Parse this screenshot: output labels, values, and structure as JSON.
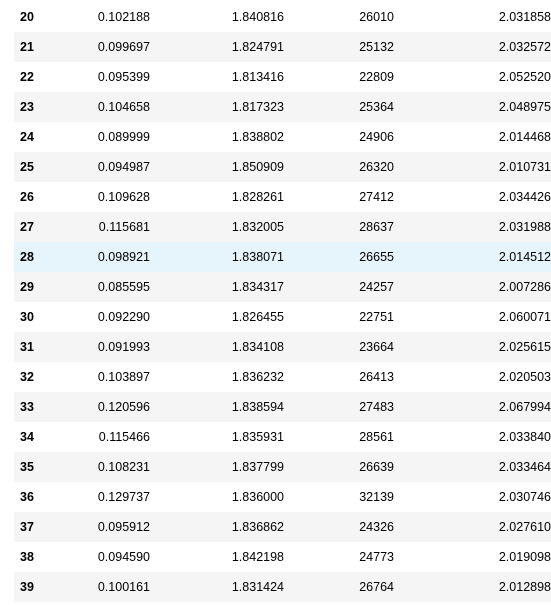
{
  "table": {
    "rows": [
      {
        "index": "20",
        "c1": "0.102188",
        "c2": "1.840816",
        "c3": "26010",
        "c4": "2.031858"
      },
      {
        "index": "21",
        "c1": "0.099697",
        "c2": "1.824791",
        "c3": "25132",
        "c4": "2.032572"
      },
      {
        "index": "22",
        "c1": "0.095399",
        "c2": "1.813416",
        "c3": "22809",
        "c4": "2.052520"
      },
      {
        "index": "23",
        "c1": "0.104658",
        "c2": "1.817323",
        "c3": "25364",
        "c4": "2.048975"
      },
      {
        "index": "24",
        "c1": "0.089999",
        "c2": "1.838802",
        "c3": "24906",
        "c4": "2.014468"
      },
      {
        "index": "25",
        "c1": "0.094987",
        "c2": "1.850909",
        "c3": "26320",
        "c4": "2.010731"
      },
      {
        "index": "26",
        "c1": "0.109628",
        "c2": "1.828261",
        "c3": "27412",
        "c4": "2.034426"
      },
      {
        "index": "27",
        "c1": "0.115681",
        "c2": "1.832005",
        "c3": "28637",
        "c4": "2.031988"
      },
      {
        "index": "28",
        "c1": "0.098921",
        "c2": "1.838071",
        "c3": "26655",
        "c4": "2.014512"
      },
      {
        "index": "29",
        "c1": "0.085595",
        "c2": "1.834317",
        "c3": "24257",
        "c4": "2.007286"
      },
      {
        "index": "30",
        "c1": "0.092290",
        "c2": "1.826455",
        "c3": "22751",
        "c4": "2.060071"
      },
      {
        "index": "31",
        "c1": "0.091993",
        "c2": "1.834108",
        "c3": "23664",
        "c4": "2.025615"
      },
      {
        "index": "32",
        "c1": "0.103897",
        "c2": "1.836232",
        "c3": "26413",
        "c4": "2.020503"
      },
      {
        "index": "33",
        "c1": "0.120596",
        "c2": "1.838594",
        "c3": "27483",
        "c4": "2.067994"
      },
      {
        "index": "34",
        "c1": "0.115466",
        "c2": "1.835931",
        "c3": "28561",
        "c4": "2.033840"
      },
      {
        "index": "35",
        "c1": "0.108231",
        "c2": "1.837799",
        "c3": "26639",
        "c4": "2.033464"
      },
      {
        "index": "36",
        "c1": "0.129737",
        "c2": "1.836000",
        "c3": "32139",
        "c4": "2.030746"
      },
      {
        "index": "37",
        "c1": "0.095912",
        "c2": "1.836862",
        "c3": "24326",
        "c4": "2.027610"
      },
      {
        "index": "38",
        "c1": "0.094590",
        "c2": "1.842198",
        "c3": "24773",
        "c4": "2.019098"
      },
      {
        "index": "39",
        "c1": "0.100161",
        "c2": "1.831424",
        "c3": "26764",
        "c4": "2.012898"
      }
    ],
    "hovered_row_index": "28",
    "colors": {
      "even_row": "#f5f5f5",
      "odd_row": "#ffffff",
      "hover_row": "#e6f4fb",
      "text": "#000000"
    }
  }
}
